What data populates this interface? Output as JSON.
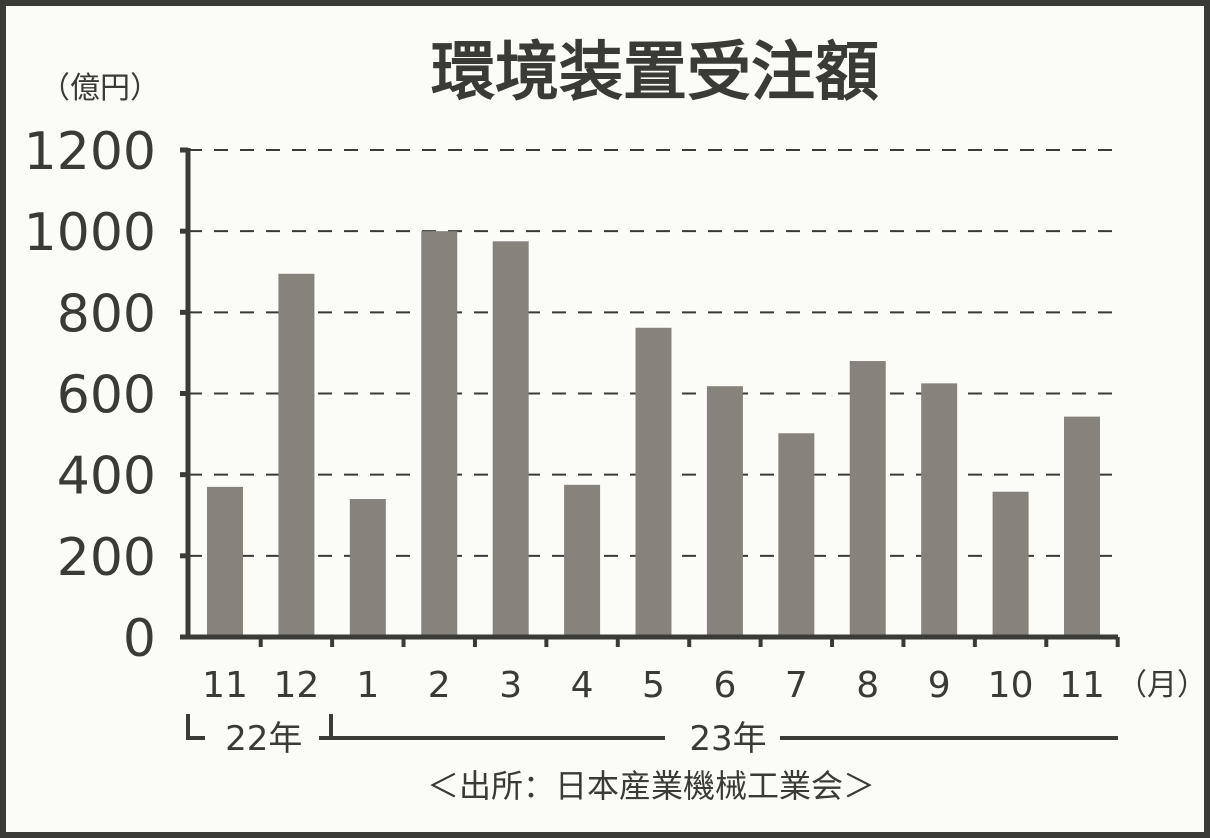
{
  "chart_data": {
    "type": "bar",
    "title": "環境装置受注額",
    "ylabel": "（億円）",
    "xlabel": "（月）",
    "ylim": [
      0,
      1200
    ],
    "yticks": [
      "0",
      "200",
      "400",
      "600",
      "800",
      "1000",
      "1200"
    ],
    "categories": [
      "11",
      "12",
      "1",
      "2",
      "3",
      "4",
      "5",
      "6",
      "7",
      "8",
      "9",
      "10",
      "11"
    ],
    "values": [
      370,
      895,
      340,
      1000,
      975,
      375,
      762,
      618,
      502,
      680,
      625,
      358,
      543
    ],
    "grid": true,
    "year_groups": [
      {
        "label": "22年",
        "start": 0,
        "end": 1
      },
      {
        "label": "23年",
        "start": 2,
        "end": 12
      }
    ],
    "source": "＜出所：日本産業機械工業会＞",
    "colors": {
      "bar": "#86837d",
      "ink": "#3a3a36",
      "background": "#fbfbf8"
    }
  }
}
